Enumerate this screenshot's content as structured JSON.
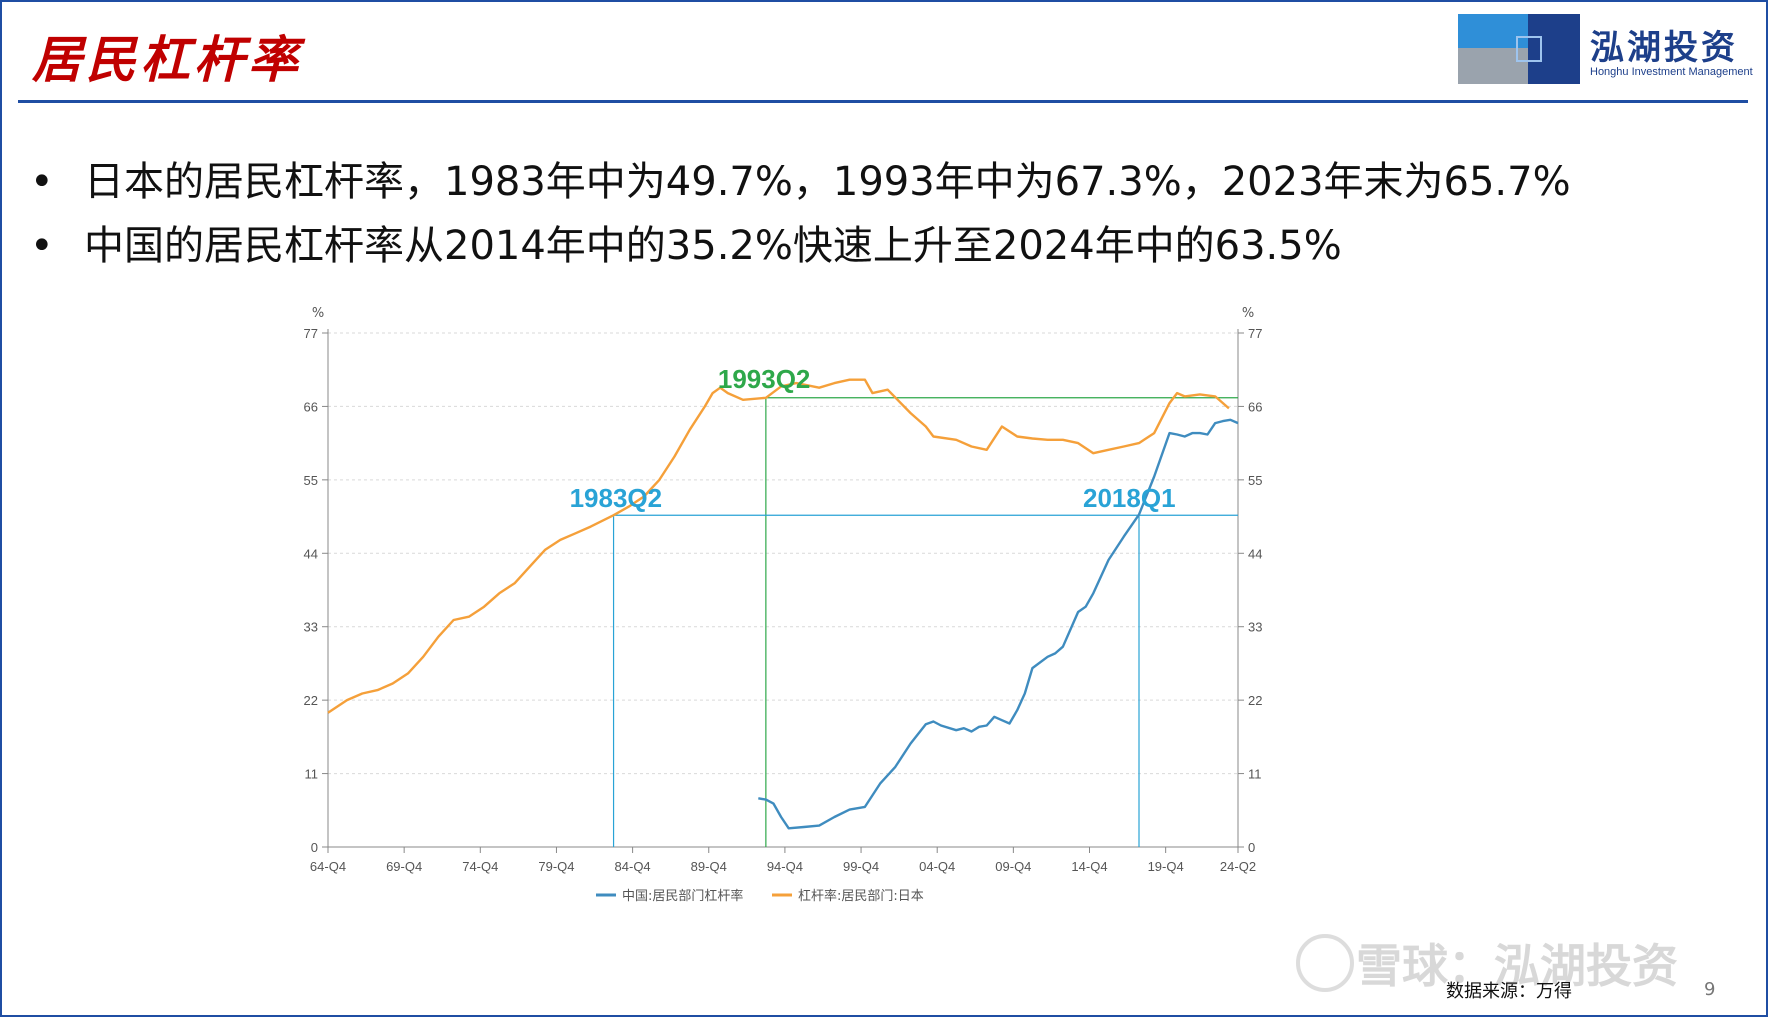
{
  "header": {
    "title": "居民杠杆率",
    "logo_cn": "泓湖投资",
    "logo_en": "Honghu Investment Management"
  },
  "bullets": [
    "日本的居民杠杆率，1983年中为49.7%，1993年中为67.3%，2023年末为65.7%",
    "中国的居民杠杆率从2014年中的35.2%快速上升至2024年中的63.5%"
  ],
  "footer": {
    "source": "数据来源：万得",
    "page": "9",
    "watermark": "雪球：泓湖投资"
  },
  "colors": {
    "title_red": "#c00000",
    "brand_blue": "#1d3f8a",
    "japan_orange": "#f5a03a",
    "china_blue": "#3f8cbf",
    "annot_green": "#2ea84a",
    "annot_blue": "#29a3d6"
  },
  "chart_data": {
    "type": "line",
    "y_unit_left": "%",
    "y_unit_right": "%",
    "ylim": [
      0,
      77
    ],
    "yticks": [
      0,
      11,
      22,
      33,
      44,
      55,
      66,
      77
    ],
    "x_range": [
      1964.75,
      2024.5
    ],
    "xtick_labels": [
      "64-Q4",
      "69-Q4",
      "74-Q4",
      "79-Q4",
      "84-Q4",
      "89-Q4",
      "94-Q4",
      "99-Q4",
      "04-Q4",
      "09-Q4",
      "14-Q4",
      "19-Q4",
      "24-Q2"
    ],
    "xtick_values": [
      1964.75,
      1969.75,
      1974.75,
      1979.75,
      1984.75,
      1989.75,
      1994.75,
      1999.75,
      2004.75,
      2009.75,
      2014.75,
      2019.75,
      2024.5
    ],
    "grid": true,
    "legend_position": "bottom",
    "series": [
      {
        "name": "中国:居民部门杠杆率",
        "color": "#3f8cbf",
        "x": [
          1993.0,
          1993.5,
          1994.0,
          1994.5,
          1995.0,
          1996.0,
          1997.0,
          1998.0,
          1999.0,
          2000.0,
          2001.0,
          2002.0,
          2003.0,
          2004.0,
          2004.5,
          2005.0,
          2006.0,
          2006.5,
          2007.0,
          2007.5,
          2008.0,
          2008.5,
          2009.0,
          2009.5,
          2010.0,
          2010.5,
          2011.0,
          2012.0,
          2012.5,
          2013.0,
          2014.0,
          2014.5,
          2015.0,
          2016.0,
          2017.0,
          2018.0,
          2019.0,
          2020.0,
          2020.5,
          2021.0,
          2021.5,
          2022.0,
          2022.5,
          2023.0,
          2023.5,
          2024.0,
          2024.5
        ],
        "y": [
          7.3,
          7.1,
          6.5,
          4.5,
          2.8,
          3.0,
          3.2,
          4.5,
          5.6,
          6.0,
          9.5,
          12.0,
          15.5,
          18.4,
          18.8,
          18.2,
          17.5,
          17.8,
          17.3,
          18.0,
          18.2,
          19.5,
          19.0,
          18.5,
          20.5,
          23.0,
          26.8,
          28.5,
          29.0,
          30.0,
          35.2,
          36.0,
          38.0,
          43.0,
          46.5,
          49.8,
          55.5,
          62.0,
          61.8,
          61.5,
          62.0,
          62.0,
          61.8,
          63.5,
          63.8,
          64.0,
          63.5
        ]
      },
      {
        "name": "杠杆率:居民部门:日本",
        "color": "#f5a03a",
        "x": [
          1964.75,
          1966.0,
          1967.0,
          1968.0,
          1969.0,
          1970.0,
          1971.0,
          1972.0,
          1973.0,
          1974.0,
          1975.0,
          1976.0,
          1977.0,
          1978.0,
          1979.0,
          1980.0,
          1981.0,
          1982.0,
          1983.5,
          1984.5,
          1985.5,
          1986.5,
          1987.5,
          1988.5,
          1989.5,
          1990.0,
          1990.5,
          1991.0,
          1992.0,
          1993.5,
          1994.5,
          1995.5,
          1997.0,
          1998.0,
          1999.0,
          2000.0,
          2000.5,
          2001.5,
          2003.0,
          2004.0,
          2004.5,
          2006.0,
          2007.0,
          2008.0,
          2009.0,
          2010.0,
          2011.0,
          2012.0,
          2013.0,
          2014.0,
          2015.0,
          2016.0,
          2017.0,
          2018.0,
          2019.0,
          2020.0,
          2020.5,
          2021.0,
          2022.0,
          2023.0,
          2023.9
        ],
        "y": [
          20.1,
          22.0,
          23.0,
          23.5,
          24.5,
          26.0,
          28.5,
          31.5,
          34.0,
          34.5,
          36.0,
          38.0,
          39.5,
          42.0,
          44.5,
          46.0,
          47.0,
          48.0,
          49.7,
          51.0,
          52.5,
          55.0,
          58.5,
          62.5,
          66.0,
          68.0,
          68.8,
          68.0,
          67.0,
          67.3,
          69.0,
          69.5,
          68.8,
          69.5,
          70.0,
          70.0,
          68.0,
          68.5,
          65.0,
          63.0,
          61.5,
          61.0,
          60.0,
          59.5,
          63.0,
          61.5,
          61.2,
          61.0,
          61.0,
          60.5,
          59.0,
          59.5,
          60.0,
          60.5,
          62.0,
          66.5,
          68.0,
          67.5,
          67.8,
          67.5,
          65.7
        ]
      }
    ],
    "annotations": [
      {
        "label": "1993Q2",
        "x": 1993.5,
        "y": 67.3,
        "color": "#2ea84a"
      },
      {
        "label": "1983Q2",
        "x": 1983.5,
        "y": 49.7,
        "color": "#29a3d6"
      },
      {
        "label": "2018Q1",
        "x": 2018.0,
        "y": 49.7,
        "color": "#29a3d6"
      }
    ]
  }
}
